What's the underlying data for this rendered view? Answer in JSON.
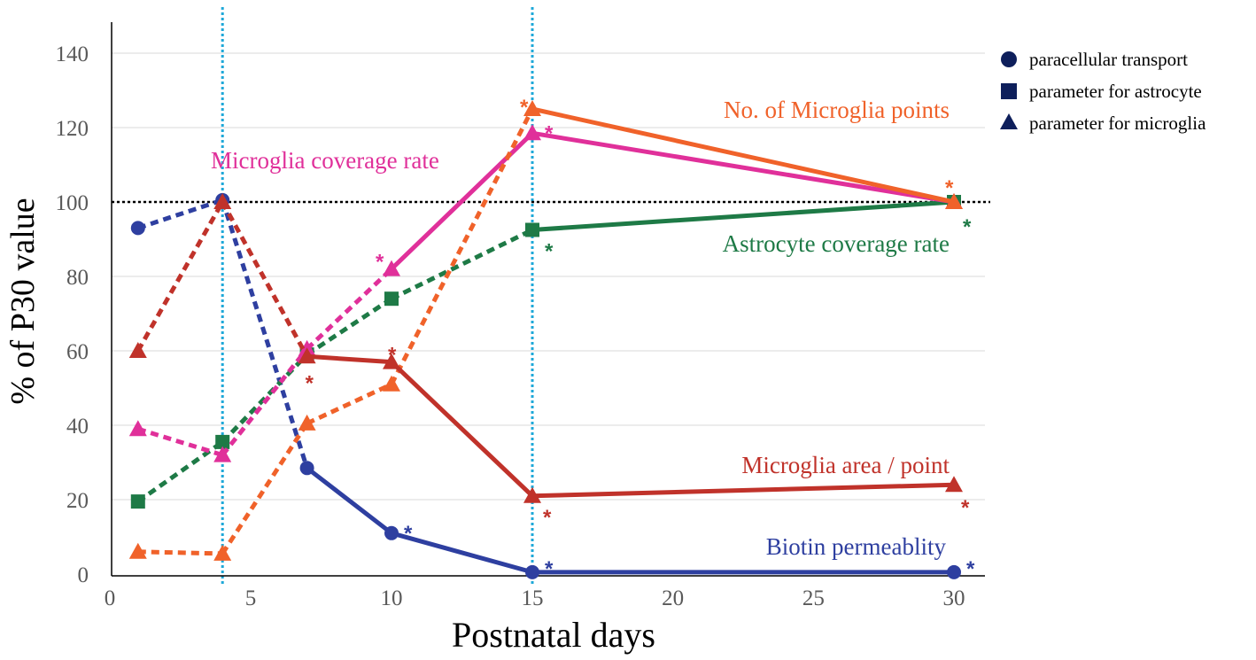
{
  "chart_data": {
    "type": "line",
    "title": "",
    "xlabel": "Postnatal days",
    "ylabel": "% of P30 value",
    "ylim": [
      0,
      140
    ],
    "xticks": [
      {
        "label": "0",
        "day": 0
      },
      {
        "label": "5",
        "day": 5
      },
      {
        "label": "10",
        "day": 10
      },
      {
        "label": "15",
        "day": 15
      },
      {
        "label": "20",
        "day": 20
      },
      {
        "label": "25",
        "day": 25
      },
      {
        "label": "30",
        "day": 30
      }
    ],
    "yticks": [
      "0",
      "20",
      "40",
      "60",
      "80",
      "100",
      "120",
      "140"
    ],
    "reference_line": {
      "y": 100,
      "style": "dotted",
      "color": "#000000"
    },
    "vertical_markers": [
      {
        "day": 4,
        "color": "#1EA8D8"
      },
      {
        "day": 15,
        "color": "#1EA8D8"
      }
    ],
    "series": [
      {
        "name": "Biotin permeablity",
        "marker": "circle",
        "color": "#2E3FA0",
        "days": [
          1,
          4,
          7,
          10,
          15,
          30
        ],
        "values": [
          93,
          100.5,
          28.5,
          11,
          0.5,
          0.5
        ],
        "dashed_until_index": 2,
        "stars": [
          3,
          4,
          5
        ]
      },
      {
        "name": "Astrocyte coverage rate",
        "marker": "square",
        "color": "#1E7A46",
        "days": [
          1,
          4,
          7,
          10,
          15,
          30
        ],
        "values": [
          19.5,
          35.5,
          59,
          74,
          92.5,
          100
        ],
        "dashed_until_index": 4,
        "stars": [
          4,
          5
        ]
      },
      {
        "name": "Microglia coverage rate",
        "marker": "triangle",
        "color": "#E0309A",
        "days": [
          1,
          4,
          7,
          10,
          15,
          30
        ],
        "values": [
          39,
          32,
          60.5,
          82,
          118.5,
          100
        ],
        "dashed_until_index": 3,
        "stars": [
          3,
          4
        ]
      },
      {
        "name": "No. of Microglia points",
        "marker": "triangle",
        "color": "#F0622A",
        "days": [
          1,
          4,
          7,
          10,
          15,
          30
        ],
        "values": [
          6,
          5.5,
          40.5,
          51,
          125,
          100
        ],
        "dashed_until_index": 4,
        "stars": [
          4,
          5
        ]
      },
      {
        "name": "Microglia area / point",
        "marker": "triangle",
        "color": "#C0322A",
        "days": [
          1,
          4,
          7,
          10,
          15,
          30
        ],
        "values": [
          60,
          100,
          58.5,
          57,
          21,
          24
        ],
        "dashed_until_index": 2,
        "stars": [
          2,
          3,
          4,
          5
        ]
      }
    ],
    "annotations": [
      {
        "text": "No. of Microglia points",
        "color": "#F0622A"
      },
      {
        "text": "Microglia coverage rate",
        "color": "#E0309A"
      },
      {
        "text": "Astrocyte coverage rate",
        "color": "#1E7A46"
      },
      {
        "text": "Microglia area / point",
        "color": "#C0322A"
      },
      {
        "text": "Biotin permeablity",
        "color": "#2E3FA0"
      }
    ],
    "legend": {
      "placement": "top-right",
      "entries": [
        {
          "marker": "circle",
          "label": "paracellular transport"
        },
        {
          "marker": "square",
          "label": "parameter for astrocyte"
        },
        {
          "marker": "triangle",
          "label": "parameter for microglia"
        }
      ],
      "color": "#0E1F5B"
    }
  }
}
